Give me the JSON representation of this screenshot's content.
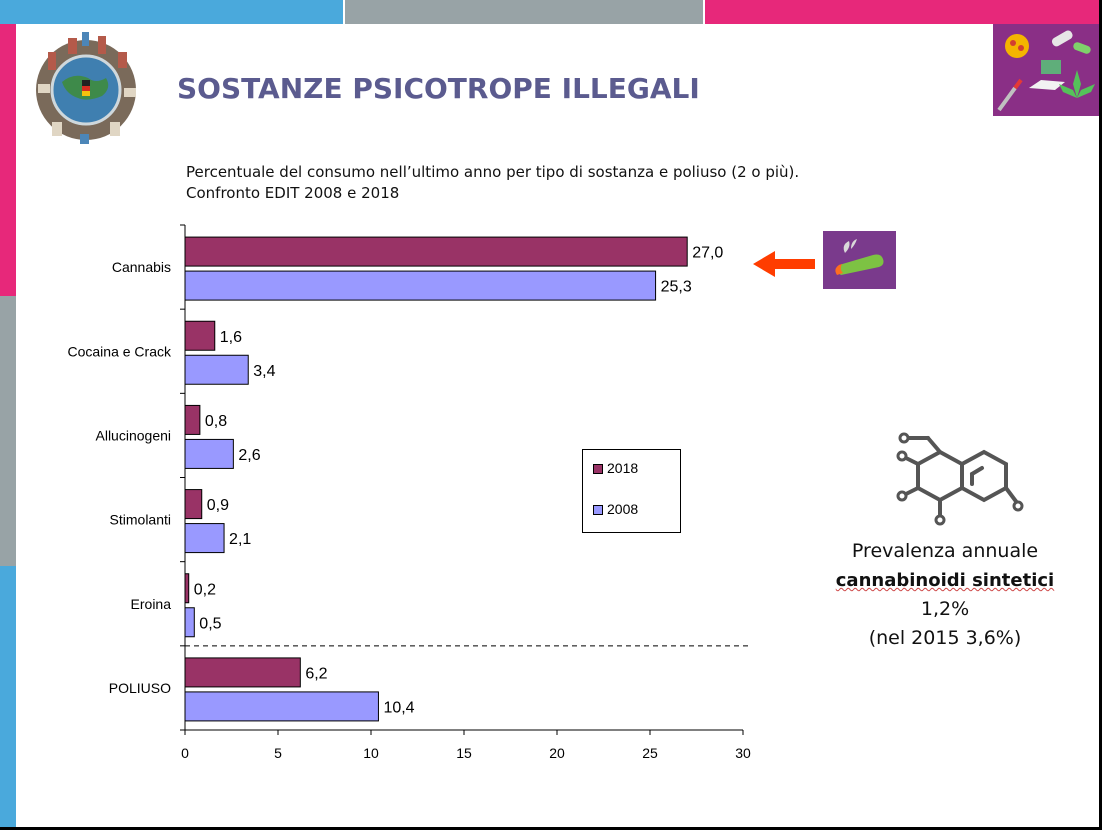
{
  "title": "SOSTANZE PSICOTROPE ILLEGALI",
  "subtitle_line1": "Percentuale del consumo nell’ultimo anno per tipo di sostanza e poliuso (2 o più).",
  "subtitle_line2": "Confronto EDIT 2008 e 2018",
  "frame_colors": {
    "blue": "#4aa9dc",
    "gray": "#98a3a6",
    "pink": "#e7287a"
  },
  "legend": {
    "item_2018": "2018",
    "item_2008": "2008"
  },
  "note": {
    "line1": "Prevalenza annuale",
    "line2_bold": "cannabinoidi sintetici",
    "line2_value": " 1,2%",
    "line3": "(nel 2015 3,6%)"
  },
  "icons": {
    "globe": "city-globe-icon",
    "drugs": "drugs-collage-icon",
    "arrow": "left-arrow-icon",
    "joint": "cannabis-joint-icon",
    "molecule": "molecule-icon"
  },
  "chart_data": {
    "type": "bar",
    "orientation": "horizontal",
    "categories": [
      "Cannabis",
      "Cocaina e Crack",
      "Allucinogeni",
      "Stimolanti",
      "Eroina",
      "POLIUSO"
    ],
    "series": [
      {
        "name": "2018",
        "color": "#993366",
        "values": [
          27.0,
          1.6,
          0.8,
          0.9,
          0.2,
          6.2
        ],
        "labels": [
          "27,0",
          "1,6",
          "0,8",
          "0,9",
          "0,2",
          "6,2"
        ]
      },
      {
        "name": "2008",
        "color": "#9999ff",
        "values": [
          25.3,
          3.4,
          2.6,
          2.1,
          0.5,
          10.4
        ],
        "labels": [
          "25,3",
          "3,4",
          "2,6",
          "2,1",
          "0,5",
          "10,4"
        ]
      }
    ],
    "xlim": [
      0,
      30
    ],
    "xticks": [
      "0",
      "5",
      "10",
      "15",
      "20",
      "25",
      "30"
    ],
    "grid": false,
    "legend_position": "right-middle",
    "separator_before": "POLIUSO"
  }
}
